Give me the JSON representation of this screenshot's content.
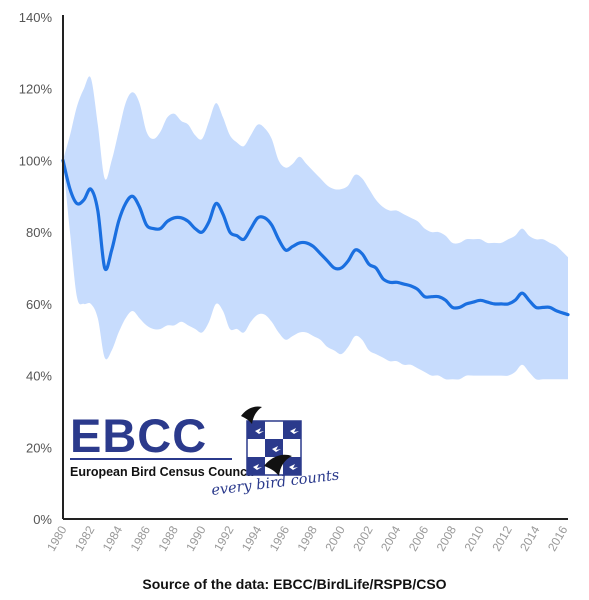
{
  "chart_data": {
    "type": "line",
    "y_tick_labels": [
      "0%",
      "20%",
      "40%",
      "60%",
      "80%",
      "100%",
      "120%",
      "140%"
    ],
    "ylim": [
      0,
      140
    ],
    "x_tick_labels": [
      "1980",
      "1982",
      "1984",
      "1986",
      "1988",
      "1990",
      "1992",
      "1994",
      "1996",
      "1998",
      "2000",
      "2002",
      "2004",
      "2006",
      "2008",
      "2010",
      "2012",
      "2014",
      "2016"
    ],
    "xlim": [
      1980,
      2016.3
    ],
    "series": [
      {
        "values": [
          [
            1980.0,
            100
          ],
          [
            1980.5,
            92
          ],
          [
            1981.0,
            88
          ],
          [
            1981.5,
            89
          ],
          [
            1982.0,
            92
          ],
          [
            1982.5,
            86
          ],
          [
            1983.0,
            70
          ],
          [
            1983.5,
            75
          ],
          [
            1984.0,
            83
          ],
          [
            1984.5,
            88
          ],
          [
            1985.0,
            90
          ],
          [
            1985.5,
            87
          ],
          [
            1986.0,
            82
          ],
          [
            1986.5,
            81
          ],
          [
            1987.0,
            81
          ],
          [
            1987.5,
            83
          ],
          [
            1988.0,
            84
          ],
          [
            1988.5,
            84
          ],
          [
            1989.0,
            83
          ],
          [
            1989.5,
            81
          ],
          [
            1990.0,
            80
          ],
          [
            1990.5,
            83
          ],
          [
            1991.0,
            88
          ],
          [
            1991.5,
            85
          ],
          [
            1992.0,
            80
          ],
          [
            1992.5,
            79
          ],
          [
            1993.0,
            78
          ],
          [
            1993.5,
            81
          ],
          [
            1994.0,
            84
          ],
          [
            1994.5,
            84
          ],
          [
            1995.0,
            82
          ],
          [
            1995.5,
            78
          ],
          [
            1996.0,
            75
          ],
          [
            1996.5,
            76
          ],
          [
            1997.0,
            77
          ],
          [
            1997.5,
            77
          ],
          [
            1998.0,
            76
          ],
          [
            1998.5,
            74
          ],
          [
            1999.0,
            72
          ],
          [
            1999.5,
            70
          ],
          [
            2000.0,
            70
          ],
          [
            2000.5,
            72
          ],
          [
            2001.0,
            75
          ],
          [
            2001.5,
            74
          ],
          [
            2002.0,
            71
          ],
          [
            2002.5,
            70
          ],
          [
            2003.0,
            67
          ],
          [
            2003.5,
            66
          ],
          [
            2004.0,
            66
          ],
          [
            2004.5,
            65.5
          ],
          [
            2005.0,
            65
          ],
          [
            2005.5,
            64
          ],
          [
            2006.0,
            62
          ],
          [
            2006.5,
            62
          ],
          [
            2007.0,
            62
          ],
          [
            2007.5,
            61
          ],
          [
            2008.0,
            59
          ],
          [
            2008.5,
            59
          ],
          [
            2009.0,
            60
          ],
          [
            2009.5,
            60.5
          ],
          [
            2010.0,
            61
          ],
          [
            2010.5,
            60.5
          ],
          [
            2011.0,
            60
          ],
          [
            2011.5,
            60
          ],
          [
            2012.0,
            60
          ],
          [
            2012.5,
            61
          ],
          [
            2013.0,
            63
          ],
          [
            2013.5,
            61
          ],
          [
            2014.0,
            59
          ],
          [
            2014.5,
            59
          ],
          [
            2015.0,
            59
          ],
          [
            2015.5,
            58
          ],
          [
            2016.3,
            57
          ]
        ]
      },
      {
        "type": "area",
        "upper": [
          [
            1980.0,
            100
          ],
          [
            1980.5,
            107
          ],
          [
            1981.0,
            115
          ],
          [
            1981.5,
            120
          ],
          [
            1982.0,
            123
          ],
          [
            1982.5,
            110
          ],
          [
            1983.0,
            95
          ],
          [
            1983.5,
            100
          ],
          [
            1984.0,
            108
          ],
          [
            1984.5,
            116
          ],
          [
            1985.0,
            119
          ],
          [
            1985.5,
            116
          ],
          [
            1986.0,
            108
          ],
          [
            1986.5,
            106
          ],
          [
            1987.0,
            108
          ],
          [
            1987.5,
            112
          ],
          [
            1988.0,
            113
          ],
          [
            1988.5,
            111
          ],
          [
            1989.0,
            110
          ],
          [
            1989.5,
            107
          ],
          [
            1990.0,
            106
          ],
          [
            1990.5,
            111
          ],
          [
            1991.0,
            116
          ],
          [
            1991.5,
            112
          ],
          [
            1992.0,
            107
          ],
          [
            1992.5,
            105
          ],
          [
            1993.0,
            104
          ],
          [
            1993.5,
            107
          ],
          [
            1994.0,
            110
          ],
          [
            1994.5,
            109
          ],
          [
            1995.0,
            106
          ],
          [
            1995.5,
            100
          ],
          [
            1996.0,
            98
          ],
          [
            1996.5,
            99
          ],
          [
            1997.0,
            101
          ],
          [
            1997.5,
            99
          ],
          [
            1998.0,
            97
          ],
          [
            1998.5,
            95
          ],
          [
            1999.0,
            93
          ],
          [
            1999.5,
            92
          ],
          [
            2000.0,
            92
          ],
          [
            2000.5,
            93
          ],
          [
            2001.0,
            96
          ],
          [
            2001.5,
            95
          ],
          [
            2002.0,
            92
          ],
          [
            2002.5,
            89
          ],
          [
            2003.0,
            87
          ],
          [
            2003.5,
            86
          ],
          [
            2004.0,
            86
          ],
          [
            2004.5,
            85
          ],
          [
            2005.0,
            84
          ],
          [
            2005.5,
            83
          ],
          [
            2006.0,
            81
          ],
          [
            2006.5,
            80
          ],
          [
            2007.0,
            80
          ],
          [
            2007.5,
            79
          ],
          [
            2008.0,
            77
          ],
          [
            2008.5,
            77
          ],
          [
            2009.0,
            78
          ],
          [
            2009.5,
            78
          ],
          [
            2010.0,
            78
          ],
          [
            2010.5,
            77
          ],
          [
            2011.0,
            77
          ],
          [
            2011.5,
            77
          ],
          [
            2012.0,
            78
          ],
          [
            2012.5,
            79
          ],
          [
            2013.0,
            81
          ],
          [
            2013.5,
            79
          ],
          [
            2014.0,
            78
          ],
          [
            2014.5,
            78
          ],
          [
            2015.0,
            77
          ],
          [
            2015.5,
            76
          ],
          [
            2016.3,
            73
          ]
        ],
        "lower": [
          [
            1980.0,
            100
          ],
          [
            1980.5,
            80
          ],
          [
            1981.0,
            62
          ],
          [
            1981.5,
            60
          ],
          [
            1982.0,
            60
          ],
          [
            1982.5,
            56
          ],
          [
            1983.0,
            45
          ],
          [
            1983.5,
            47
          ],
          [
            1984.0,
            52
          ],
          [
            1984.5,
            56
          ],
          [
            1985.0,
            58
          ],
          [
            1985.5,
            56
          ],
          [
            1986.0,
            54
          ],
          [
            1986.5,
            53
          ],
          [
            1987.0,
            53
          ],
          [
            1987.5,
            54
          ],
          [
            1988.0,
            54
          ],
          [
            1988.5,
            55
          ],
          [
            1989.0,
            54
          ],
          [
            1989.5,
            53
          ],
          [
            1990.0,
            52
          ],
          [
            1990.5,
            55
          ],
          [
            1991.0,
            60
          ],
          [
            1991.5,
            58
          ],
          [
            1992.0,
            53
          ],
          [
            1992.5,
            53
          ],
          [
            1993.0,
            52
          ],
          [
            1993.5,
            55
          ],
          [
            1994.0,
            57
          ],
          [
            1994.5,
            57
          ],
          [
            1995.0,
            55
          ],
          [
            1995.5,
            52
          ],
          [
            1996.0,
            50
          ],
          [
            1996.5,
            51
          ],
          [
            1997.0,
            52
          ],
          [
            1997.5,
            52
          ],
          [
            1998.0,
            51
          ],
          [
            1998.5,
            50
          ],
          [
            1999.0,
            48
          ],
          [
            1999.5,
            47
          ],
          [
            2000.0,
            46
          ],
          [
            2000.5,
            48
          ],
          [
            2001.0,
            51
          ],
          [
            2001.5,
            50
          ],
          [
            2002.0,
            47
          ],
          [
            2002.5,
            46
          ],
          [
            2003.0,
            45
          ],
          [
            2003.5,
            44
          ],
          [
            2004.0,
            44
          ],
          [
            2004.5,
            43
          ],
          [
            2005.0,
            43
          ],
          [
            2005.5,
            42
          ],
          [
            2006.0,
            41
          ],
          [
            2006.5,
            40
          ],
          [
            2007.0,
            40
          ],
          [
            2007.5,
            39
          ],
          [
            2008.0,
            39
          ],
          [
            2008.5,
            39
          ],
          [
            2009.0,
            40
          ],
          [
            2009.5,
            40
          ],
          [
            2010.0,
            40
          ],
          [
            2010.5,
            40
          ],
          [
            2011.0,
            40
          ],
          [
            2011.5,
            40
          ],
          [
            2012.0,
            40
          ],
          [
            2012.5,
            41
          ],
          [
            2013.0,
            43
          ],
          [
            2013.5,
            41
          ],
          [
            2014.0,
            39
          ],
          [
            2014.5,
            39
          ],
          [
            2015.0,
            39
          ],
          [
            2015.5,
            39
          ],
          [
            2016.3,
            39
          ]
        ]
      }
    ],
    "colors": {
      "line": "#1a6fe0",
      "band": "#c7dcfd",
      "axis": "#222222"
    },
    "grid": false
  },
  "logo": {
    "title": "EBCC",
    "subtitle": "European Bird Census Council",
    "tagline": "every bird counts",
    "colors": {
      "primary": "#2b3a8c",
      "bird": "#111111"
    }
  },
  "source_text": "Source of the data: EBCC/BirdLife/RSPB/CSO"
}
